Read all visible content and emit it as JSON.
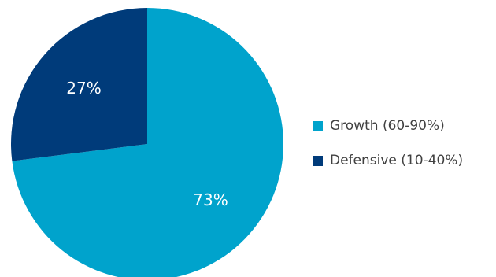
{
  "chart_data": {
    "type": "pie",
    "start_angle_deg": 0,
    "direction": "clockwise",
    "slices": [
      {
        "name": "Growth (60-90%)",
        "value": 73,
        "label": "73%",
        "color": "#00A3CC"
      },
      {
        "name": "Defensive (10-40%)",
        "value": 27,
        "label": "27%",
        "color": "#003B7A"
      }
    ],
    "legend_position": "right"
  }
}
